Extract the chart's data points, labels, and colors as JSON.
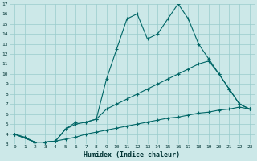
{
  "xlabel": "Humidex (Indice chaleur)",
  "bg_color": "#cce8e8",
  "grid_color": "#99cccc",
  "line_color": "#006666",
  "ylim": [
    3,
    17
  ],
  "xlim": [
    -0.5,
    23.5
  ],
  "yticks": [
    3,
    4,
    5,
    6,
    7,
    8,
    9,
    10,
    11,
    12,
    13,
    14,
    15,
    16,
    17
  ],
  "xticks": [
    0,
    1,
    2,
    3,
    4,
    5,
    6,
    7,
    8,
    9,
    10,
    11,
    12,
    13,
    14,
    15,
    16,
    17,
    18,
    19,
    20,
    21,
    22,
    23
  ],
  "line1_x": [
    0,
    1,
    2,
    3,
    4,
    5,
    6,
    7,
    8,
    9,
    10,
    11,
    12,
    13,
    14,
    15,
    16,
    17,
    18,
    19,
    20,
    21,
    22,
    23
  ],
  "line1_y": [
    4.0,
    3.7,
    3.2,
    3.2,
    3.3,
    3.5,
    3.7,
    4.0,
    4.2,
    4.4,
    4.6,
    4.8,
    5.0,
    5.2,
    5.4,
    5.6,
    5.7,
    5.9,
    6.1,
    6.2,
    6.4,
    6.5,
    6.7,
    6.5
  ],
  "line2_x": [
    0,
    2,
    3,
    4,
    5,
    6,
    7,
    8,
    9,
    10,
    11,
    12,
    13,
    14,
    15,
    16,
    17,
    18,
    19,
    20,
    21,
    22,
    23
  ],
  "line2_y": [
    4.0,
    3.2,
    3.2,
    3.3,
    4.5,
    5.0,
    5.2,
    5.5,
    6.5,
    7.0,
    7.5,
    8.0,
    8.5,
    9.0,
    9.5,
    10.0,
    10.5,
    11.0,
    11.3,
    10.0,
    8.5,
    7.0,
    6.5
  ],
  "line3_x": [
    0,
    2,
    3,
    4,
    5,
    6,
    7,
    8,
    9,
    10,
    11,
    12,
    13,
    14,
    15,
    16,
    17,
    18,
    19,
    20,
    21,
    22,
    23
  ],
  "line3_y": [
    4.0,
    3.2,
    3.2,
    3.3,
    4.5,
    5.2,
    5.2,
    5.5,
    9.5,
    12.5,
    15.5,
    16.0,
    13.5,
    14.0,
    15.5,
    17.0,
    15.5,
    13.0,
    11.5,
    10.0,
    8.5,
    7.0,
    6.5
  ]
}
